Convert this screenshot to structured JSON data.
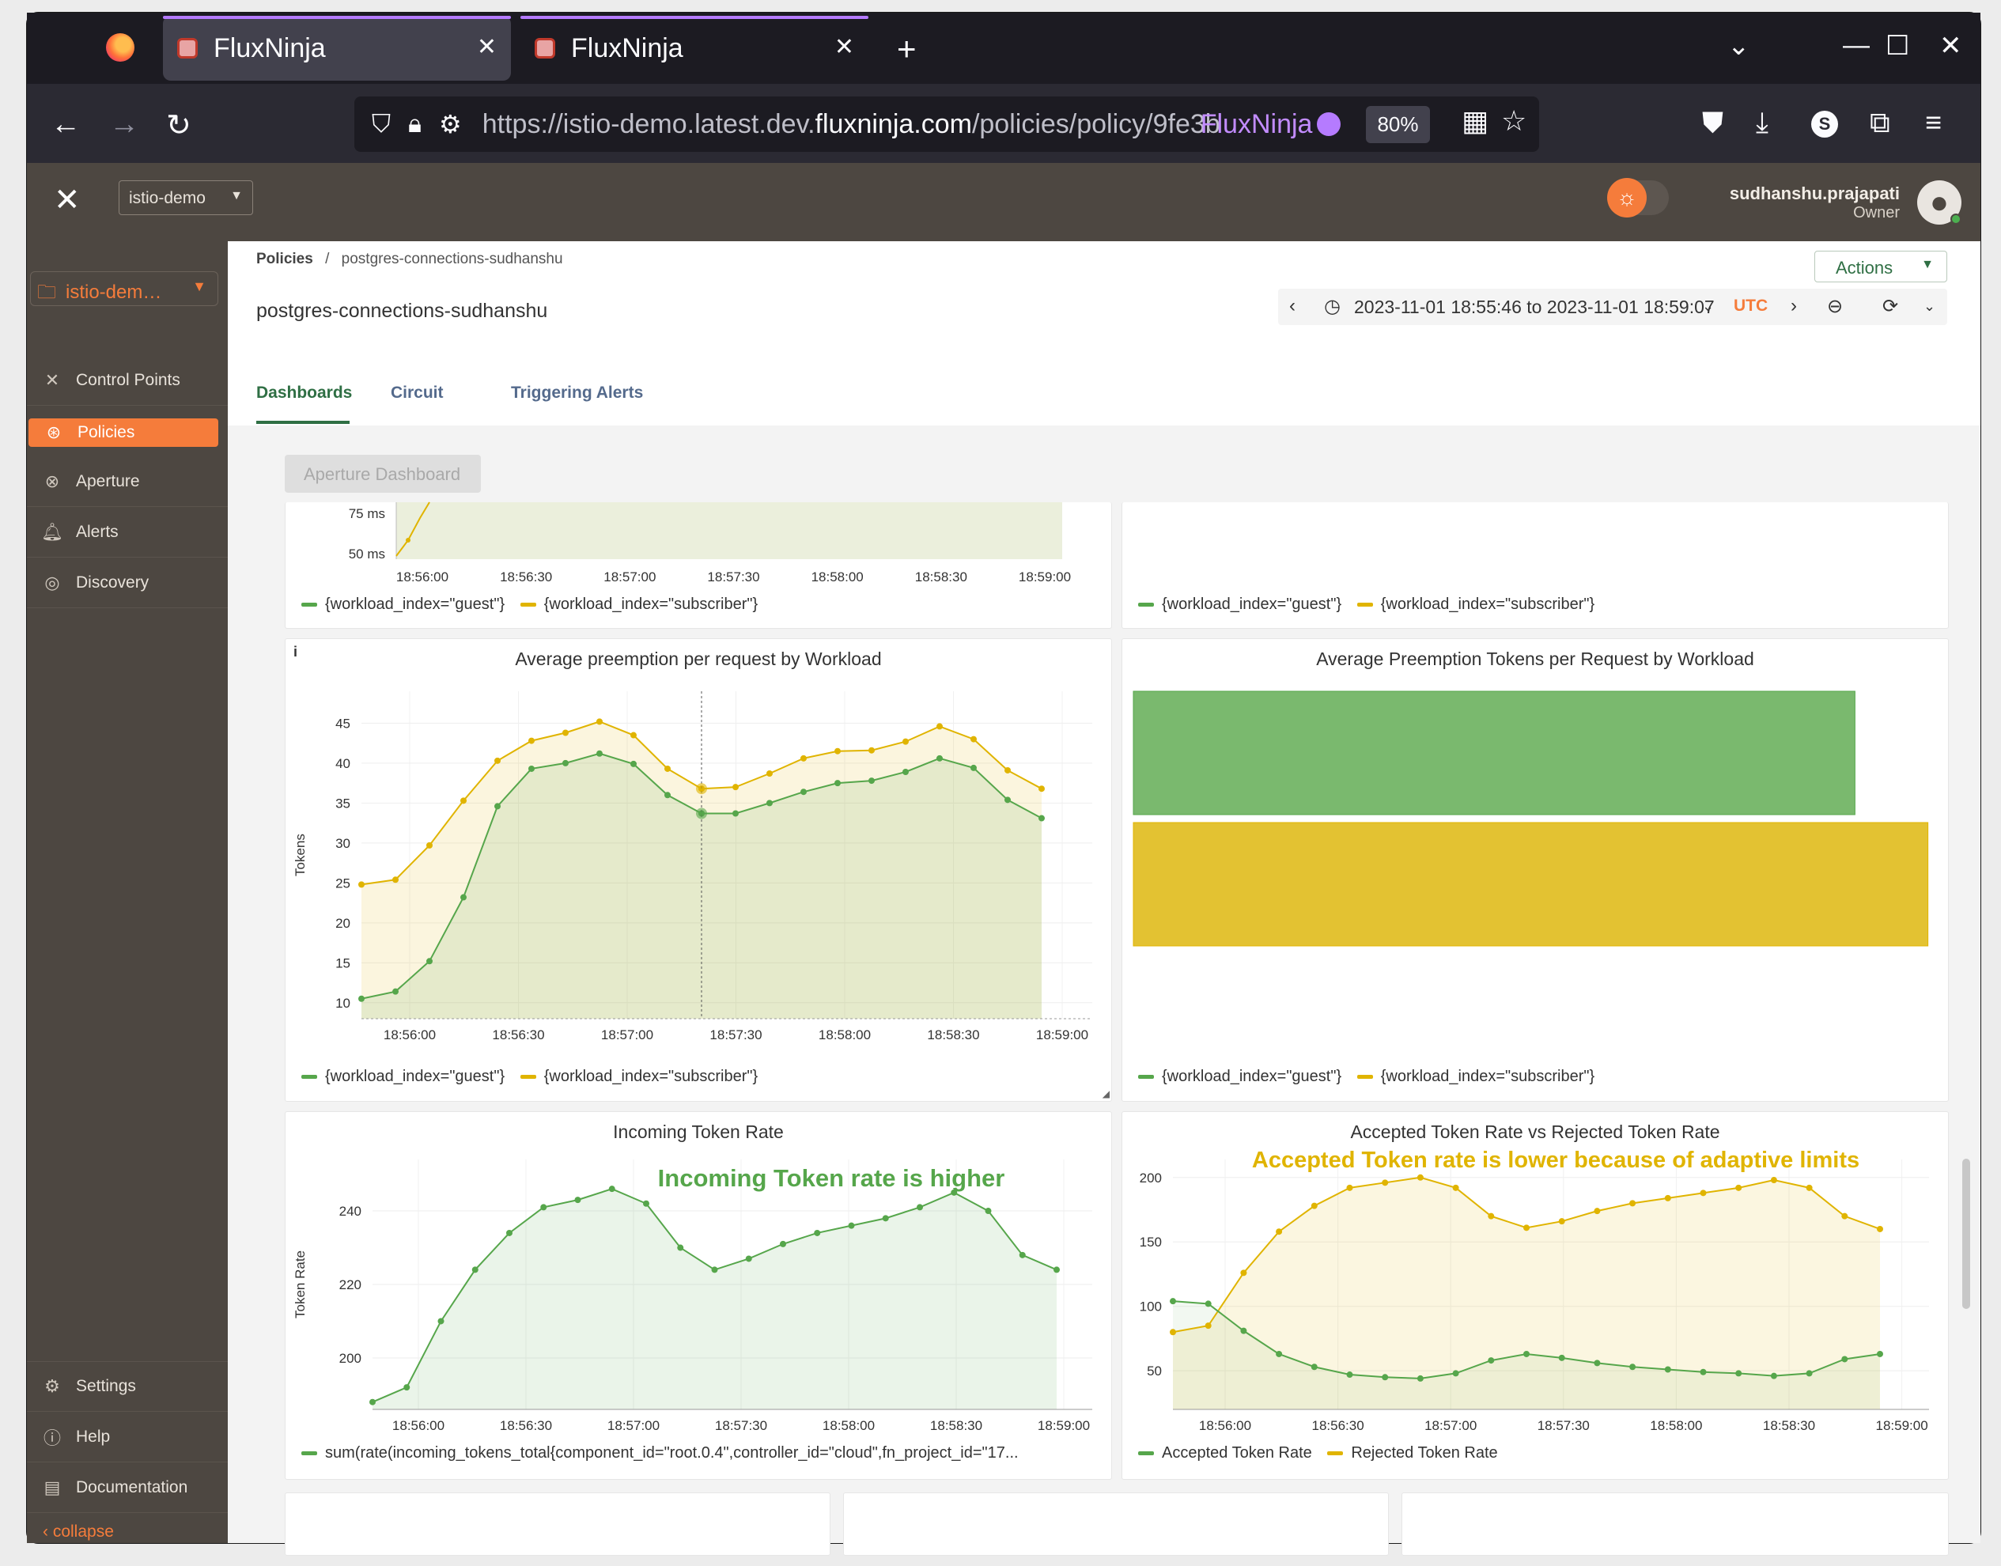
{
  "browser": {
    "tabs": [
      {
        "title": "FluxNinja",
        "active": true
      },
      {
        "title": "FluxNinja",
        "active": false
      }
    ],
    "url_prefix": "https://istio-demo.latest.dev.",
    "url_domain": "fluxninja.com",
    "url_path": "/policies/policy/9fe3b",
    "site_badge": "FluxNinja",
    "zoom": "80%",
    "profile_initial": "S"
  },
  "header": {
    "org": "istio-demo",
    "user_name": "sudhanshu.prajapati",
    "user_role": "Owner"
  },
  "sidebar": {
    "project": "istio-dem…",
    "items": [
      {
        "label": "Control Points",
        "icon": "control-points-icon"
      },
      {
        "label": "Policies",
        "icon": "policies-icon",
        "active": true
      },
      {
        "label": "Aperture",
        "icon": "aperture-icon"
      },
      {
        "label": "Alerts",
        "icon": "bell-icon"
      },
      {
        "label": "Discovery",
        "icon": "discovery-icon"
      }
    ],
    "bottom_items": [
      {
        "label": "Settings",
        "icon": "gear-icon"
      },
      {
        "label": "Help",
        "icon": "help-icon"
      },
      {
        "label": "Documentation",
        "icon": "document-icon"
      }
    ],
    "collapse_label": "collapse"
  },
  "page": {
    "breadcrumb_root": "Policies",
    "breadcrumb_sep": "/",
    "breadcrumb_current": "postgres-connections-sudhanshu",
    "title": "postgres-connections-sudhanshu",
    "actions_label": "Actions",
    "time_range": "2023-11-01 18:55:46 to 2023-11-01 18:59:07",
    "timezone": "UTC",
    "tabs": [
      "Dashboards",
      "Circuit",
      "Triggering Alerts"
    ],
    "dashboard_button": "Aperture Dashboard"
  },
  "colors": {
    "guest": "#56a64b",
    "subscriber": "#e0b400",
    "accent": "#f57c3b",
    "primary": "#2f6f44"
  },
  "chart_data": [
    {
      "id": "top-left-partial",
      "type": "line",
      "x": [
        "18:56:00",
        "18:56:30",
        "18:57:00",
        "18:57:30",
        "18:58:00",
        "18:58:30",
        "18:59:00"
      ],
      "y_ticks": [
        "75 ms",
        "50 ms"
      ],
      "series": [
        {
          "name": "{workload_index=\"guest\"}"
        },
        {
          "name": "{workload_index=\"subscriber\"}"
        }
      ]
    },
    {
      "id": "top-right-partial",
      "type": "bar",
      "series": [
        {
          "name": "{workload_index=\"guest\"}"
        },
        {
          "name": "{workload_index=\"subscriber\"}"
        }
      ]
    },
    {
      "id": "avg-preemption",
      "type": "area",
      "title": "Average preemption per request by Workload",
      "ylabel": "Tokens",
      "ylim": [
        8,
        49
      ],
      "y_ticks": [
        10,
        15,
        20,
        25,
        30,
        35,
        40,
        45
      ],
      "x_ticks": [
        "18:56:00",
        "18:56:30",
        "18:57:00",
        "18:57:30",
        "18:58:00",
        "18:58:30",
        "18:59:00"
      ],
      "x_start": 0,
      "x_end": 20,
      "series": [
        {
          "name": "{workload_index=\"guest\"}",
          "values": [
            10.5,
            11.4,
            15.2,
            23.2,
            34.6,
            39.3,
            40.0,
            41.2,
            39.9,
            36.0,
            33.7,
            33.7,
            35.0,
            36.4,
            37.5,
            37.8,
            38.9,
            40.6,
            39.4,
            35.4,
            33.1
          ]
        },
        {
          "name": "{workload_index=\"subscriber\"}",
          "values": [
            24.8,
            25.4,
            29.7,
            35.3,
            40.3,
            42.8,
            43.8,
            45.2,
            43.5,
            39.3,
            36.8,
            37.0,
            38.7,
            40.6,
            41.5,
            41.6,
            42.7,
            44.6,
            43.0,
            39.1,
            36.8
          ]
        }
      ]
    },
    {
      "id": "avg-preemption-tokens",
      "type": "bar",
      "title": "Average Preemption Tokens per Request by Workload",
      "orientation": "horizontal",
      "categories": [
        "{workload_index=\"guest\"}",
        "{workload_index=\"subscriber\"}"
      ],
      "values": [
        35.6,
        39.2
      ],
      "xlim": [
        0,
        39.8
      ],
      "series": [
        {
          "name": "{workload_index=\"guest\"}"
        },
        {
          "name": "{workload_index=\"subscriber\"}"
        }
      ]
    },
    {
      "id": "incoming-token-rate",
      "type": "area",
      "title": "Incoming Token Rate",
      "annotation": "Incoming Token rate is higher",
      "ylabel": "Token Rate",
      "ylim": [
        186,
        254
      ],
      "y_ticks": [
        200,
        220,
        240
      ],
      "x_ticks": [
        "18:56:00",
        "18:56:30",
        "18:57:00",
        "18:57:30",
        "18:58:00",
        "18:58:30",
        "18:59:00"
      ],
      "series": [
        {
          "name": "sum(rate(incoming_tokens_total{component_id=\"root.0.4\",controller_id=\"cloud\",fn_project_id=\"17...",
          "values": [
            188,
            192,
            210,
            224,
            234,
            241,
            243,
            246,
            242,
            230,
            224,
            227,
            231,
            234,
            236,
            238,
            241,
            245,
            240,
            228,
            224
          ]
        }
      ]
    },
    {
      "id": "accepted-vs-rejected",
      "type": "area",
      "title": "Accepted Token Rate vs Rejected Token Rate",
      "annotation": "Accepted Token rate is lower because of adaptive limits",
      "ylim": [
        20,
        214
      ],
      "y_ticks": [
        50,
        100,
        150,
        200
      ],
      "x_ticks": [
        "18:56:00",
        "18:56:30",
        "18:57:00",
        "18:57:30",
        "18:58:00",
        "18:58:30",
        "18:59:00"
      ],
      "series": [
        {
          "name": "Accepted Token Rate",
          "values": [
            104,
            102,
            81,
            63,
            53,
            47,
            45,
            44,
            48,
            58,
            63,
            60,
            56,
            53,
            51,
            49,
            48,
            46,
            48,
            59,
            63
          ]
        },
        {
          "name": "Rejected Token Rate",
          "values": [
            80,
            85,
            126,
            158,
            178,
            192,
            196,
            200,
            192,
            170,
            161,
            166,
            174,
            180,
            184,
            188,
            192,
            198,
            192,
            170,
            160
          ]
        }
      ]
    }
  ]
}
